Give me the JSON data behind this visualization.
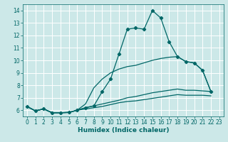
{
  "xlabel": "Humidex (Indice chaleur)",
  "bg_color": "#cce8e8",
  "grid_color": "#ffffff",
  "line_color": "#006666",
  "xlim": [
    -0.5,
    23.5
  ],
  "ylim": [
    5.5,
    14.5
  ],
  "xticks": [
    0,
    1,
    2,
    3,
    4,
    5,
    6,
    7,
    8,
    9,
    10,
    11,
    12,
    13,
    14,
    15,
    16,
    17,
    18,
    19,
    20,
    21,
    22,
    23
  ],
  "yticks": [
    6,
    7,
    8,
    9,
    10,
    11,
    12,
    13,
    14
  ],
  "line1_x": [
    0,
    1,
    2,
    3,
    4,
    5,
    6,
    7,
    8,
    9,
    10,
    11,
    12,
    13,
    14,
    15,
    16,
    17,
    18,
    19,
    20,
    21,
    22
  ],
  "line1_y": [
    6.3,
    5.95,
    6.1,
    5.8,
    5.8,
    5.82,
    6.0,
    6.2,
    6.35,
    7.5,
    8.5,
    10.5,
    12.5,
    12.6,
    12.5,
    14.0,
    13.4,
    11.5,
    10.3,
    9.9,
    9.8,
    9.2,
    7.5
  ],
  "line2_x": [
    0,
    1,
    2,
    3,
    4,
    5,
    6,
    7,
    8,
    9,
    10,
    11,
    12,
    13,
    14,
    15,
    16,
    17,
    18,
    19,
    20,
    21,
    22
  ],
  "line2_y": [
    6.3,
    5.95,
    6.1,
    5.8,
    5.8,
    5.82,
    6.0,
    6.5,
    7.8,
    8.5,
    9.0,
    9.3,
    9.5,
    9.6,
    9.8,
    10.0,
    10.15,
    10.25,
    10.3,
    9.9,
    9.8,
    9.2,
    7.5
  ],
  "line3_x": [
    0,
    1,
    2,
    3,
    4,
    5,
    6,
    7,
    8,
    9,
    10,
    11,
    12,
    13,
    14,
    15,
    16,
    17,
    18,
    19,
    20,
    21,
    22
  ],
  "line3_y": [
    6.3,
    5.95,
    6.1,
    5.8,
    5.8,
    5.82,
    6.0,
    6.2,
    6.35,
    6.5,
    6.65,
    6.8,
    7.0,
    7.1,
    7.25,
    7.4,
    7.5,
    7.6,
    7.7,
    7.6,
    7.6,
    7.55,
    7.5
  ],
  "line4_x": [
    0,
    1,
    2,
    3,
    4,
    5,
    6,
    7,
    8,
    9,
    10,
    11,
    12,
    13,
    14,
    15,
    16,
    17,
    18,
    19,
    20,
    21,
    22
  ],
  "line4_y": [
    6.3,
    5.95,
    6.1,
    5.8,
    5.8,
    5.82,
    6.0,
    6.1,
    6.2,
    6.3,
    6.45,
    6.6,
    6.7,
    6.75,
    6.85,
    6.95,
    7.05,
    7.15,
    7.25,
    7.2,
    7.2,
    7.2,
    7.15
  ],
  "marker_x": [
    0,
    1,
    2,
    3,
    4,
    5,
    6,
    7,
    8,
    9,
    10,
    11,
    12,
    13,
    14,
    15,
    16,
    17,
    18,
    19,
    20,
    21,
    22
  ],
  "marker_y": [
    6.3,
    5.95,
    6.1,
    5.8,
    5.8,
    5.82,
    6.0,
    6.2,
    6.35,
    7.5,
    8.5,
    10.5,
    12.5,
    12.6,
    12.5,
    14.0,
    13.4,
    11.5,
    10.3,
    9.9,
    9.8,
    9.2,
    7.5
  ],
  "tick_fontsize": 5.5,
  "xlabel_fontsize": 6.5
}
